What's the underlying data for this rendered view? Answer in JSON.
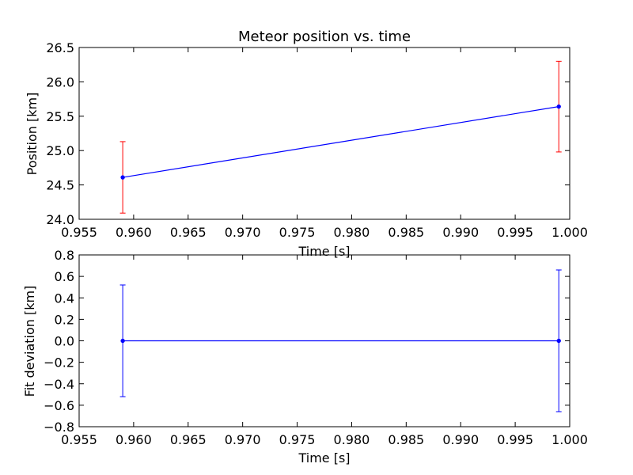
{
  "figure": {
    "background": "#ffffff"
  },
  "chart_data": [
    {
      "type": "line",
      "title": "Meteor position vs. time",
      "xlabel": "Time [s]",
      "ylabel": "Position [km]",
      "xlim": [
        0.955,
        1.0
      ],
      "ylim": [
        24.0,
        26.5
      ],
      "xticks": [
        0.955,
        0.96,
        0.965,
        0.97,
        0.975,
        0.98,
        0.985,
        0.99,
        0.995,
        1.0
      ],
      "yticks": [
        24.0,
        24.5,
        25.0,
        25.5,
        26.0,
        26.5
      ],
      "xtick_labels": [
        "0.955",
        "0.960",
        "0.965",
        "0.970",
        "0.975",
        "0.980",
        "0.985",
        "0.990",
        "0.995",
        "1.000"
      ],
      "ytick_labels": [
        "24.0",
        "24.5",
        "25.0",
        "25.5",
        "26.0",
        "26.5"
      ],
      "grid": false,
      "series": [
        {
          "x": [
            0.959,
            0.999
          ],
          "y": [
            24.61,
            25.64
          ],
          "yerr": [
            0.52,
            0.66
          ],
          "line_color": "#0000ff",
          "marker_color": "#0000ff",
          "err_color": "#ff0000"
        }
      ]
    },
    {
      "type": "line",
      "title": "",
      "xlabel": "Time [s]",
      "ylabel": "Fit deviation [km]",
      "xlim": [
        0.955,
        1.0
      ],
      "ylim": [
        -0.8,
        0.8
      ],
      "xticks": [
        0.955,
        0.96,
        0.965,
        0.97,
        0.975,
        0.98,
        0.985,
        0.99,
        0.995,
        1.0
      ],
      "yticks": [
        -0.8,
        -0.6,
        -0.4,
        -0.2,
        0.0,
        0.2,
        0.4,
        0.6,
        0.8
      ],
      "xtick_labels": [
        "0.955",
        "0.960",
        "0.965",
        "0.970",
        "0.975",
        "0.980",
        "0.985",
        "0.990",
        "0.995",
        "1.000"
      ],
      "ytick_labels": [
        "−0.8",
        "−0.6",
        "−0.4",
        "−0.2",
        "0.0",
        "0.2",
        "0.4",
        "0.6",
        "0.8"
      ],
      "grid": false,
      "reference_line": {
        "y": 0.0,
        "color": "#ff0000",
        "style": "dashed"
      },
      "series": [
        {
          "x": [
            0.959,
            0.999
          ],
          "y": [
            0.0,
            0.0
          ],
          "yerr": [
            0.52,
            0.66
          ],
          "line_color": "#0000ff",
          "marker_color": "#0000ff",
          "err_color": "#0000ff"
        }
      ]
    }
  ]
}
